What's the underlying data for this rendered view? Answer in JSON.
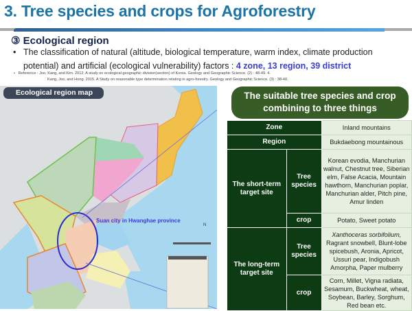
{
  "header": {
    "title": "3. Tree species and crops for Agroforestry"
  },
  "section": {
    "heading": "③ Ecological region",
    "bullet_text": "The classification of natural (altitude, biological temperature, warm index, climate production potential) and artificial (ecological vulnerability) factors : ",
    "bullet_highlight": "4 zone, 13 region, 39 district",
    "reference_1": "Reference : Joo, Kang, and Kim. 2012. A study on ecological geographic division(section) of Korea. Geology and Geographic Science. (2) : 48-49. 4.",
    "reference_2": "Kang, Joo, and Hong. 2015. A Study on reasonable type determination relating in agro-forestry. Geology and Geographic Science. (3) : 38-40."
  },
  "map": {
    "label": "Ecological region map",
    "annotation": "Suan city in Hwanghae province",
    "north": "N"
  },
  "panel": {
    "title_line1": "The suitable tree species and crop",
    "title_line2": "combining to three things"
  },
  "table": {
    "zone_label": "Zone",
    "zone_value": "Inland mountains",
    "region_label": "Region",
    "region_value": "Bukdaebong mountainous",
    "short_term": {
      "label": "The short-term target site",
      "tree_label": "Tree species",
      "tree_value": "Korean evodia, Manchurian walnut, Chestnut tree, Siberian elm, False Acacia, Mountain hawthorn, Manchurian poplar, Manchurian alder, Pitch pine, Amur linden",
      "crop_label": "crop",
      "crop_value": "Potato, Sweet potato"
    },
    "long_term": {
      "label": "The long-term target site",
      "tree_label": "Tree species",
      "tree_value_italic": "Xanthoceras sorbifolium,",
      "tree_value": "Ragrant snowbell, Blunt-lobe spicebush, Aronia, Apricot, Ussuri pear, Indigobush Amorpha, Paper mulberry",
      "crop_label": "crop",
      "crop_value": "Corn, Millet, Vigna radiata, Sesamum, Buckwheat, wheat, Soybean, Barley, Sorghum, Red bean etc."
    }
  },
  "colors": {
    "title": "#1c74a6",
    "panel": "#375c25",
    "table_header": "#0d3b14",
    "table_value": "#e7f0e0",
    "highlight": "#3b3bd8"
  }
}
